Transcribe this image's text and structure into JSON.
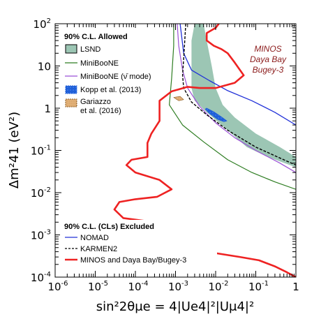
{
  "chart_data": {
    "type": "line",
    "xlabel": "sin²2θμe = 4|Ue4|²|Uμ4|²",
    "ylabel": "Δm²41 (eV²)",
    "x_scale": "log",
    "y_scale": "log",
    "xlim": [
      1e-06,
      1
    ],
    "ylim": [
      0.0001,
      100
    ],
    "x_ticks": [
      "10-6",
      "10-5",
      "10-4",
      "10-3",
      "10-2",
      "10-1",
      "1"
    ],
    "y_ticks": [
      "10-4",
      "10-3",
      "10-2",
      "10-1",
      "1",
      "10",
      "102"
    ],
    "annotation": [
      "MINOS",
      "Daya Bay",
      "Bugey-3"
    ],
    "colors": {
      "lsnd": "#9cc6b4",
      "miniboone": "#2e7d22",
      "miniboone_nubar": "#9b4fd6",
      "kopp": "#1f5fd8",
      "gariazzo": "#e3b27a",
      "nomad": "#2030d8",
      "karmen": "#000000",
      "minos": "#ee2222",
      "annotation": "#8b1a1a"
    },
    "legend_allowed": {
      "header": "90% C.L. Allowed",
      "entries": [
        "LSND",
        "MiniBooNE",
        "MiniBooNE (ν̄ mode)",
        "Kopp et al. (2013)",
        "Gariazzo",
        "et al. (2016)"
      ]
    },
    "legend_excluded": {
      "header": "90% C.L. (CLs) Excluded",
      "entries": [
        "NOMAD",
        "KARMEN2",
        "MINOS and Daya Bay/Bugey-3"
      ]
    },
    "series": [
      {
        "name": "LSND",
        "type": "band",
        "points": [
          [
            0.003,
            100
          ],
          [
            0.0025,
            40
          ],
          [
            0.0025,
            3
          ],
          [
            0.003,
            1.5
          ],
          [
            0.006,
            0.8
          ],
          [
            0.02,
            0.3
          ],
          [
            0.06,
            0.12
          ],
          [
            0.2,
            0.07
          ],
          [
            1,
            0.04
          ],
          [
            1,
            0.07
          ],
          [
            0.4,
            0.12
          ],
          [
            0.1,
            0.25
          ],
          [
            0.03,
            0.6
          ],
          [
            0.015,
            1.2
          ],
          [
            0.01,
            3
          ],
          [
            0.008,
            10
          ],
          [
            0.006,
            40
          ],
          [
            0.005,
            100
          ]
        ]
      },
      {
        "name": "MiniBooNE",
        "type": "line",
        "points": [
          [
            0.0009,
            100
          ],
          [
            0.0009,
            30
          ],
          [
            0.0008,
            5
          ],
          [
            0.0007,
            1.2
          ],
          [
            0.0015,
            0.4
          ],
          [
            0.005,
            0.16
          ],
          [
            0.02,
            0.06
          ],
          [
            0.08,
            0.03
          ],
          [
            0.3,
            0.018
          ],
          [
            1,
            0.012
          ]
        ]
      },
      {
        "name": "MiniBooNE (ν̄ mode)",
        "type": "line",
        "points": [
          [
            0.0011,
            100
          ],
          [
            0.0012,
            30
          ],
          [
            0.0015,
            8
          ],
          [
            0.002,
            3
          ],
          [
            0.004,
            1.1
          ],
          [
            0.01,
            0.45
          ],
          [
            0.03,
            0.2
          ],
          [
            0.1,
            0.1
          ],
          [
            0.4,
            0.05
          ],
          [
            1,
            0.03
          ]
        ]
      },
      {
        "name": "Kopp et al. (2013)",
        "type": "band",
        "points": [
          [
            0.0055,
            0.95
          ],
          [
            0.007,
            0.75
          ],
          [
            0.011,
            0.55
          ],
          [
            0.016,
            0.48
          ],
          [
            0.019,
            0.5
          ],
          [
            0.014,
            0.62
          ],
          [
            0.009,
            0.82
          ],
          [
            0.006,
            1.0
          ]
        ]
      },
      {
        "name": "Gariazzo et al. (2016)",
        "type": "band",
        "points": [
          [
            0.0009,
            1.8
          ],
          [
            0.0012,
            1.5
          ],
          [
            0.0016,
            1.6
          ],
          [
            0.0013,
            1.9
          ]
        ]
      },
      {
        "name": "NOMAD",
        "type": "line",
        "points": [
          [
            0.0013,
            100
          ],
          [
            0.0016,
            20
          ],
          [
            0.0025,
            8
          ],
          [
            0.007,
            4.5
          ],
          [
            0.02,
            2.6
          ],
          [
            0.08,
            1.5
          ],
          [
            0.3,
            0.8
          ],
          [
            1,
            0.4
          ]
        ]
      },
      {
        "name": "KARMEN2",
        "type": "line",
        "points": [
          [
            0.0018,
            100
          ],
          [
            0.0016,
            15
          ],
          [
            0.0015,
            6
          ],
          [
            0.0016,
            3
          ],
          [
            0.0025,
            1.4
          ],
          [
            0.006,
            0.7
          ],
          [
            0.02,
            0.3
          ],
          [
            0.1,
            0.12
          ],
          [
            0.5,
            0.06
          ],
          [
            1,
            0.045
          ]
        ]
      },
      {
        "name": "MINOS and Daya Bay/Bugey-3",
        "type": "line",
        "points": [
          [
            0.012,
            100
          ],
          [
            0.01,
            80
          ],
          [
            0.006,
            60
          ],
          [
            0.006,
            40
          ],
          [
            0.009,
            30
          ],
          [
            0.014,
            25
          ],
          [
            0.02,
            20
          ],
          [
            0.03,
            12
          ],
          [
            0.05,
            6
          ],
          [
            0.03,
            4
          ],
          [
            0.01,
            3
          ],
          [
            0.004,
            3
          ],
          [
            0.002,
            3.2
          ],
          [
            0.0008,
            2.5
          ],
          [
            0.0004,
            1.5
          ],
          [
            0.0004,
            0.5
          ],
          [
            0.00025,
            0.25
          ],
          [
            0.0002,
            0.15
          ],
          [
            0.0002,
            0.07
          ],
          [
            8e-05,
            0.06
          ],
          [
            6e-05,
            0.045
          ],
          [
            0.0001,
            0.03
          ],
          [
            0.0004,
            0.02
          ],
          [
            0.0008,
            0.012
          ],
          [
            0.00035,
            0.008
          ],
          [
            0.0001,
            0.007
          ],
          [
            4e-05,
            0.006
          ],
          [
            3e-05,
            0.004
          ],
          [
            5e-05,
            0.0025
          ],
          [
            0.0003,
            0.002
          ],
          [
            0.0003,
            0.0015
          ],
          [
            0.00015,
            0.001
          ],
          [
            6e-05,
            0.0008
          ],
          [
            2.5e-05,
            0.0006
          ],
          [
            6e-05,
            0.0004
          ],
          [
            0.0003,
            0.0003
          ],
          [
            0.001,
            0.00035
          ],
          [
            0.006,
            0.0004
          ],
          [
            0.04,
            0.0003
          ],
          [
            0.12,
            0.00025
          ],
          [
            0.3,
            0.00018
          ],
          [
            0.6,
            0.00013
          ],
          [
            1,
            0.0001
          ]
        ]
      }
    ]
  }
}
